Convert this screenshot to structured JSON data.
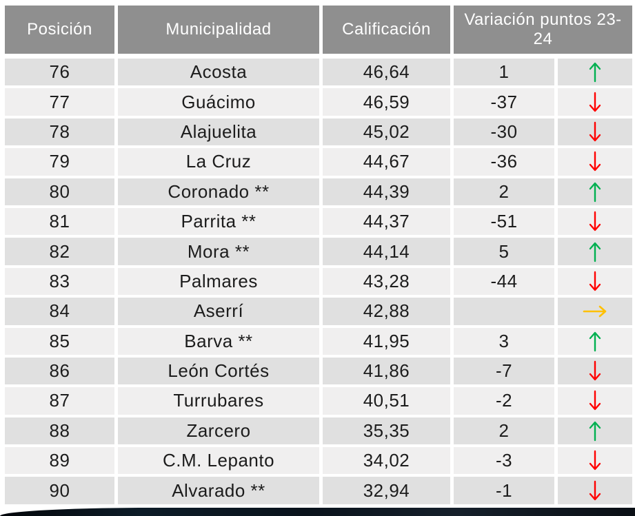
{
  "table": {
    "columns": {
      "position": "Posición",
      "municipality": "Municipalidad",
      "score": "Calificación",
      "variation": "Variación puntos 23-24"
    },
    "rows": [
      {
        "position": "76",
        "municipality": "Acosta",
        "score": "46,64",
        "variation": "1",
        "trend": "up"
      },
      {
        "position": "77",
        "municipality": "Guácimo",
        "score": "46,59",
        "variation": "-37",
        "trend": "down"
      },
      {
        "position": "78",
        "municipality": "Alajuelita",
        "score": "45,02",
        "variation": "-30",
        "trend": "down"
      },
      {
        "position": "79",
        "municipality": "La Cruz",
        "score": "44,67",
        "variation": "-36",
        "trend": "down"
      },
      {
        "position": "80",
        "municipality": "Coronado **",
        "score": "44,39",
        "variation": "2",
        "trend": "up"
      },
      {
        "position": "81",
        "municipality": "Parrita **",
        "score": "44,37",
        "variation": "-51",
        "trend": "down"
      },
      {
        "position": "82",
        "municipality": "Mora **",
        "score": "44,14",
        "variation": "5",
        "trend": "up"
      },
      {
        "position": "83",
        "municipality": "Palmares",
        "score": "43,28",
        "variation": "-44",
        "trend": "down"
      },
      {
        "position": "84",
        "municipality": "Aserrí",
        "score": "42,88",
        "variation": "",
        "trend": "flat"
      },
      {
        "position": "85",
        "municipality": "Barva **",
        "score": "41,95",
        "variation": "3",
        "trend": "up"
      },
      {
        "position": "86",
        "municipality": "León Cortés",
        "score": "41,86",
        "variation": "-7",
        "trend": "down"
      },
      {
        "position": "87",
        "municipality": "Turrubares",
        "score": "40,51",
        "variation": "-2",
        "trend": "down"
      },
      {
        "position": "88",
        "municipality": "Zarcero",
        "score": "35,35",
        "variation": "2",
        "trend": "up"
      },
      {
        "position": "89",
        "municipality": "C.M. Lepanto",
        "score": "34,02",
        "variation": "-3",
        "trend": "down"
      },
      {
        "position": "90",
        "municipality": "Alvarado **",
        "score": "32,94",
        "variation": "-1",
        "trend": "down"
      }
    ]
  },
  "colors": {
    "header_bg": "#8f8f8f",
    "header_text": "#ffffff",
    "row_dark": "#e0e0e0",
    "row_light": "#f0efef",
    "body_text": "#1c1c1c",
    "trend_up": "#00b050",
    "trend_down": "#ff0000",
    "trend_flat": "#ffc000"
  }
}
